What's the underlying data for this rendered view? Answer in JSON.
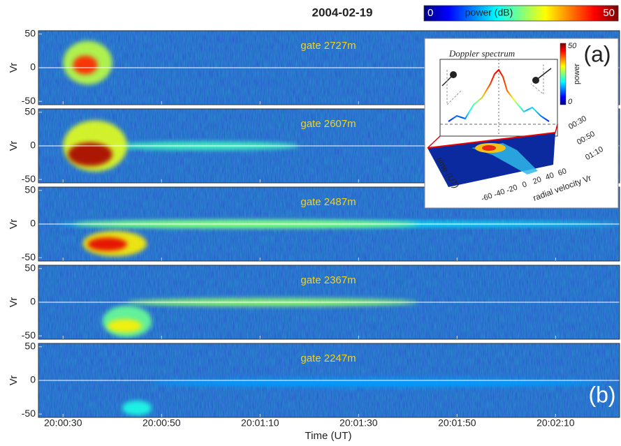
{
  "chart_data": {
    "type": "spectrogram",
    "title": "2004-02-19",
    "colorbar": {
      "label": "power (dB)",
      "clim": [
        0,
        50
      ],
      "ticks": [
        0,
        50
      ]
    },
    "xlabel": "Time (UT)",
    "xlim": [
      72025,
      72143
    ],
    "xticks": [
      {
        "value": 72030,
        "label": "20:00:30"
      },
      {
        "value": 72050,
        "label": "20:00:50"
      },
      {
        "value": 72070,
        "label": "20:01:10"
      },
      {
        "value": 72090,
        "label": "20:01:30"
      },
      {
        "value": 72110,
        "label": "20:01:50"
      },
      {
        "value": 72130,
        "label": "20:02:10"
      }
    ],
    "ylabel": "Vr",
    "ylim": [
      -55,
      55
    ],
    "yticks": [
      -50,
      0,
      50
    ],
    "zero_line": true,
    "panel_label": "(b)",
    "panels": [
      {
        "label": "gate 2727m",
        "echoes": [
          {
            "x": [
              72030,
              72040
            ],
            "y": [
              -25,
              40
            ],
            "power": 28
          },
          {
            "x": [
              72032,
              72037
            ],
            "y": [
              -10,
              18
            ],
            "power": 42
          }
        ]
      },
      {
        "label": "gate 2607m",
        "echoes": [
          {
            "x": [
              72040,
              72078
            ],
            "y": [
              -6,
              6
            ],
            "power": 22
          },
          {
            "x": [
              72030,
              72043
            ],
            "y": [
              -38,
              38
            ],
            "power": 30
          },
          {
            "x": [
              72031,
              72040
            ],
            "y": [
              -30,
              5
            ],
            "power": 48
          }
        ]
      },
      {
        "label": "gate 2487m",
        "echoes": [
          {
            "x": [
              72029,
              72143
            ],
            "y": [
              -4,
              4
            ],
            "power": 18
          },
          {
            "x": [
              72032,
              72102
            ],
            "y": [
              -6,
              6
            ],
            "power": 26
          },
          {
            "x": [
              72034,
              72047
            ],
            "y": [
              -48,
              -10
            ],
            "power": 32
          },
          {
            "x": [
              72035,
              72043
            ],
            "y": [
              -40,
              -20
            ],
            "power": 45
          }
        ]
      },
      {
        "label": "gate 2367m",
        "echoes": [
          {
            "x": [
              72043,
              72102
            ],
            "y": [
              -6,
              6
            ],
            "power": 26
          },
          {
            "x": [
              72038,
              72048
            ],
            "y": [
              -52,
              -5
            ],
            "power": 24
          },
          {
            "x": [
              72039,
              72046
            ],
            "y": [
              -45,
              -25
            ],
            "power": 32
          }
        ]
      },
      {
        "label": "gate 2247m",
        "echoes": [
          {
            "x": [
              72048,
              72140
            ],
            "y": [
              -10,
              3
            ],
            "power": 14
          },
          {
            "x": [
              72042,
              72048
            ],
            "y": [
              -52,
              -30
            ],
            "power": 20
          }
        ]
      }
    ]
  },
  "inset": {
    "panel_label": "(a)",
    "title": "Doppler spectrum",
    "colorbar_label": "power",
    "colorbar_ticks": [
      0,
      50
    ],
    "spectrum": {
      "x": [
        -60,
        -50,
        -40,
        -30,
        -20,
        -10,
        -5,
        0,
        5,
        10,
        20,
        30,
        40,
        50,
        60
      ],
      "values": [
        8,
        12,
        10,
        20,
        25,
        35,
        42,
        45,
        40,
        30,
        22,
        15,
        18,
        12,
        8
      ],
      "xlim": [
        -70,
        70
      ],
      "ylim": [
        0,
        50
      ]
    },
    "time_label": "time (UT)",
    "time_ticks": [
      "00:30",
      "00:50",
      "01:10"
    ],
    "velocity_label": "radial velocity Vr",
    "velocity_ticks": [
      -60,
      -40,
      -20,
      0,
      20,
      40,
      60
    ]
  }
}
